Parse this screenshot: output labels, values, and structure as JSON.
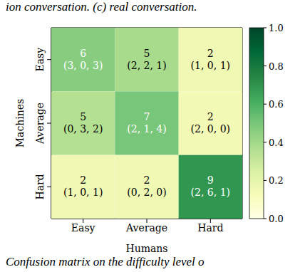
{
  "chart_data": {
    "type": "heatmap",
    "x_label": "Humans",
    "y_label": "Machines",
    "x_categories": [
      "Easy",
      "Average",
      "Hard"
    ],
    "y_categories": [
      "Easy",
      "Average",
      "Hard"
    ],
    "cells": [
      [
        6,
        5,
        2
      ],
      [
        5,
        7,
        2
      ],
      [
        2,
        2,
        9
      ]
    ],
    "cell_labels": [
      [
        "(3, 0, 3)",
        "(2, 2, 1)",
        "(1, 0, 1)"
      ],
      [
        "(0, 3, 2)",
        "(2, 1, 4)",
        "(2, 0, 0)"
      ],
      [
        "(1, 0, 1)",
        "(0, 2, 0)",
        "(2, 6, 1)"
      ]
    ],
    "colorbar_lim": [
      0,
      1
    ],
    "colorbar_ticks": [
      {
        "value": 0,
        "label": "0.0"
      },
      0.2,
      0.4,
      0.6,
      0.8,
      {
        "value": 1,
        "label": "1.0"
      }
    ]
  },
  "text_above": "ion conversation. (c) real conversation.",
  "text_below": "Confusion matrix on the difficulty level o"
}
